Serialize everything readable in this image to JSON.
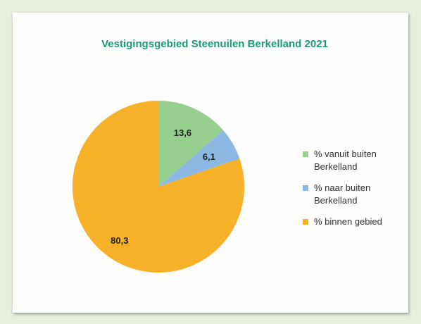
{
  "chart_data": {
    "type": "pie",
    "title": "Vestigingsgebied Steenuilen Berkelland 2021",
    "categories": [
      "% vanuit buiten Berkelland",
      "% naar buiten Berkelland",
      "% binnen gebied"
    ],
    "values": [
      13.6,
      6.1,
      80.3
    ],
    "value_labels": [
      "13,6",
      "6,1",
      "80,3"
    ],
    "colors": [
      "#97cf8e",
      "#8db7e3",
      "#f6b128"
    ],
    "legend": "right"
  }
}
